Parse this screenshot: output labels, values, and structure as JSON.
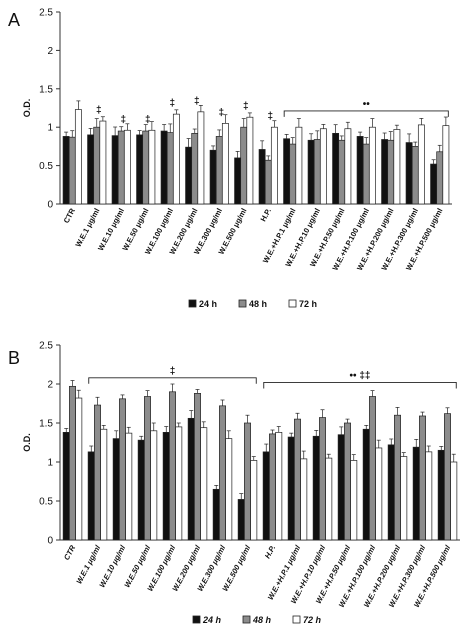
{
  "chart_data": [
    {
      "panel": "A",
      "type": "bar",
      "ylabel": "O.D.",
      "ylim": [
        0,
        2.5
      ],
      "yticks": [
        "0",
        "0.5",
        "1",
        "1.5",
        "2",
        "2.5"
      ],
      "grid": false,
      "legend_position": "bottom",
      "categories": [
        "CTR",
        "W.E.1 μg/ml",
        "W.E.10 μg/ml",
        "W.E.50 μg/ml",
        "W.E.100 μg/ml",
        "W.E.200 μg/ml",
        "W.E.300 μg/ml",
        "W.E.500 μg/ml",
        "H.P.",
        "W.E.+H.P.1 μg/ml",
        "W.E.+H.P.10 μg/ml",
        "W.E.+H.P.50 μg/ml",
        "W.E.+H.P.100 μg/ml",
        "W.E.+H.P.200 μg/ml",
        "W.E.+H.P.300 μg/ml",
        "W.E.+H.P.500 μg/ml"
      ],
      "series": [
        {
          "name": "24 h",
          "color": "#111111",
          "values": [
            0.88,
            0.9,
            0.89,
            0.9,
            0.95,
            0.74,
            0.7,
            0.6,
            0.71,
            0.85,
            0.83,
            0.92,
            0.88,
            0.84,
            0.8,
            0.52
          ]
        },
        {
          "name": "48 h",
          "color": "#8c8c8c",
          "values": [
            0.87,
            1.0,
            0.95,
            0.95,
            0.93,
            0.92,
            0.88,
            1.0,
            0.57,
            0.78,
            0.84,
            0.83,
            0.78,
            0.83,
            0.75,
            0.68
          ]
        },
        {
          "name": "72 h",
          "color": "#ffffff",
          "values": [
            1.23,
            1.08,
            0.96,
            0.96,
            1.17,
            1.2,
            1.05,
            1.13,
            1.0,
            1.0,
            0.98,
            0.98,
            1.0,
            0.97,
            1.03,
            1.02
          ]
        }
      ],
      "annotations": [
        {
          "category_index": 1,
          "text": "‡"
        },
        {
          "category_index": 2,
          "text": "‡"
        },
        {
          "category_index": 3,
          "text": "‡"
        },
        {
          "category_index": 4,
          "text": "‡"
        },
        {
          "category_index": 5,
          "text": "‡"
        },
        {
          "category_index": 6,
          "text": "‡"
        },
        {
          "category_index": 7,
          "text": "‡"
        },
        {
          "category_index": 8,
          "text": "‡"
        },
        {
          "bracket_from": 9,
          "bracket_to": 15,
          "text": "••"
        }
      ]
    },
    {
      "panel": "B",
      "type": "bar",
      "ylabel": "O.D.",
      "ylim": [
        0,
        2.5
      ],
      "yticks": [
        "0",
        "0.5",
        "1",
        "1.5",
        "2",
        "2.5"
      ],
      "grid": false,
      "legend_position": "bottom",
      "categories": [
        "CTR",
        "W.E.1 μg/ml",
        "W.E.10 μg/ml",
        "W.E.50 μg/ml",
        "W.E.100 μg/ml",
        "W.E.200 μg/ml",
        "W.E.300 μg/ml",
        "W.E.500 μg/ml",
        "H.P.",
        "W.E.+H.P.1 μg/ml",
        "W.E.+H.P.10 μg/ml",
        "W.E.+H.P.50 μg/ml",
        "W.E.+H.P.100 μg/ml",
        "W.E.+H.P.200 μg/ml",
        "W.E.+H.P.300 μg/ml",
        "W.E.+H.P.500 μg/ml"
      ],
      "series": [
        {
          "name": "24 h",
          "color": "#111111",
          "values": [
            1.38,
            1.13,
            1.3,
            1.28,
            1.38,
            1.56,
            0.65,
            0.52,
            1.13,
            1.32,
            1.33,
            1.35,
            1.42,
            1.22,
            1.19,
            1.15
          ]
        },
        {
          "name": "48 h",
          "color": "#8c8c8c",
          "values": [
            1.97,
            1.73,
            1.81,
            1.84,
            1.9,
            1.88,
            1.72,
            1.5,
            1.36,
            1.55,
            1.57,
            1.5,
            1.84,
            1.6,
            1.59,
            1.62
          ]
        },
        {
          "name": "72 h",
          "color": "#ffffff",
          "values": [
            1.82,
            1.42,
            1.37,
            1.4,
            1.45,
            1.44,
            1.3,
            1.02,
            1.38,
            1.04,
            1.05,
            1.02,
            1.18,
            1.07,
            1.13,
            1.0
          ]
        }
      ],
      "annotations": [
        {
          "bracket_from": 1,
          "bracket_to": 7,
          "text": "‡"
        },
        {
          "bracket_from": 8,
          "bracket_to": 15,
          "text": "•• ‡‡"
        }
      ]
    }
  ]
}
